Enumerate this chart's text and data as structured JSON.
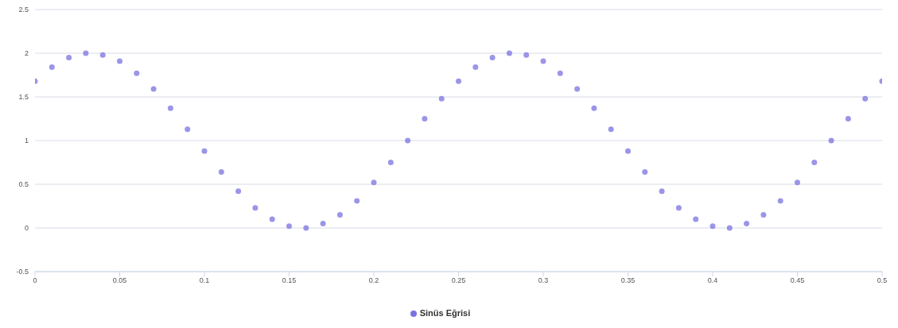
{
  "chart_data": {
    "type": "scatter",
    "x": [
      0,
      0.01,
      0.02,
      0.03,
      0.04,
      0.05,
      0.06,
      0.07,
      0.08,
      0.09,
      0.1,
      0.11,
      0.12,
      0.13,
      0.14,
      0.15,
      0.16,
      0.17,
      0.18,
      0.19,
      0.2,
      0.21,
      0.22,
      0.23,
      0.24,
      0.25,
      0.26,
      0.27,
      0.28,
      0.29,
      0.3,
      0.31,
      0.32,
      0.33,
      0.34,
      0.35,
      0.36,
      0.37,
      0.38,
      0.39,
      0.4,
      0.41,
      0.42,
      0.43,
      0.44,
      0.45,
      0.46,
      0.47,
      0.48,
      0.49,
      0.5
    ],
    "series": [
      {
        "name": "Sinüs Eğrisi",
        "color": "#7a72e0",
        "values": [
          1.68,
          1.84,
          1.95,
          2.0,
          1.98,
          1.91,
          1.77,
          1.59,
          1.37,
          1.13,
          0.88,
          0.64,
          0.42,
          0.23,
          0.1,
          0.02,
          0.0,
          0.05,
          0.15,
          0.31,
          0.52,
          0.75,
          1.0,
          1.25,
          1.48,
          1.68,
          1.84,
          1.95,
          2.0,
          1.98,
          1.91,
          1.77,
          1.59,
          1.37,
          1.13,
          0.88,
          0.64,
          0.42,
          0.23,
          0.1,
          0.02,
          0.0,
          0.05,
          0.15,
          0.31,
          0.52,
          0.75,
          1.0,
          1.25,
          1.48,
          1.68
        ]
      }
    ],
    "xlim": [
      0,
      0.5
    ],
    "xticks": [
      0,
      0.05,
      0.1,
      0.15,
      0.2,
      0.25,
      0.3,
      0.35,
      0.4,
      0.45,
      0.5
    ],
    "ylim": [
      -0.5,
      2.5
    ],
    "yticks": [
      -0.5,
      0,
      0.5,
      1,
      1.5,
      2,
      2.5
    ],
    "grid": "y",
    "legend": "bottom",
    "marker": "circle"
  }
}
